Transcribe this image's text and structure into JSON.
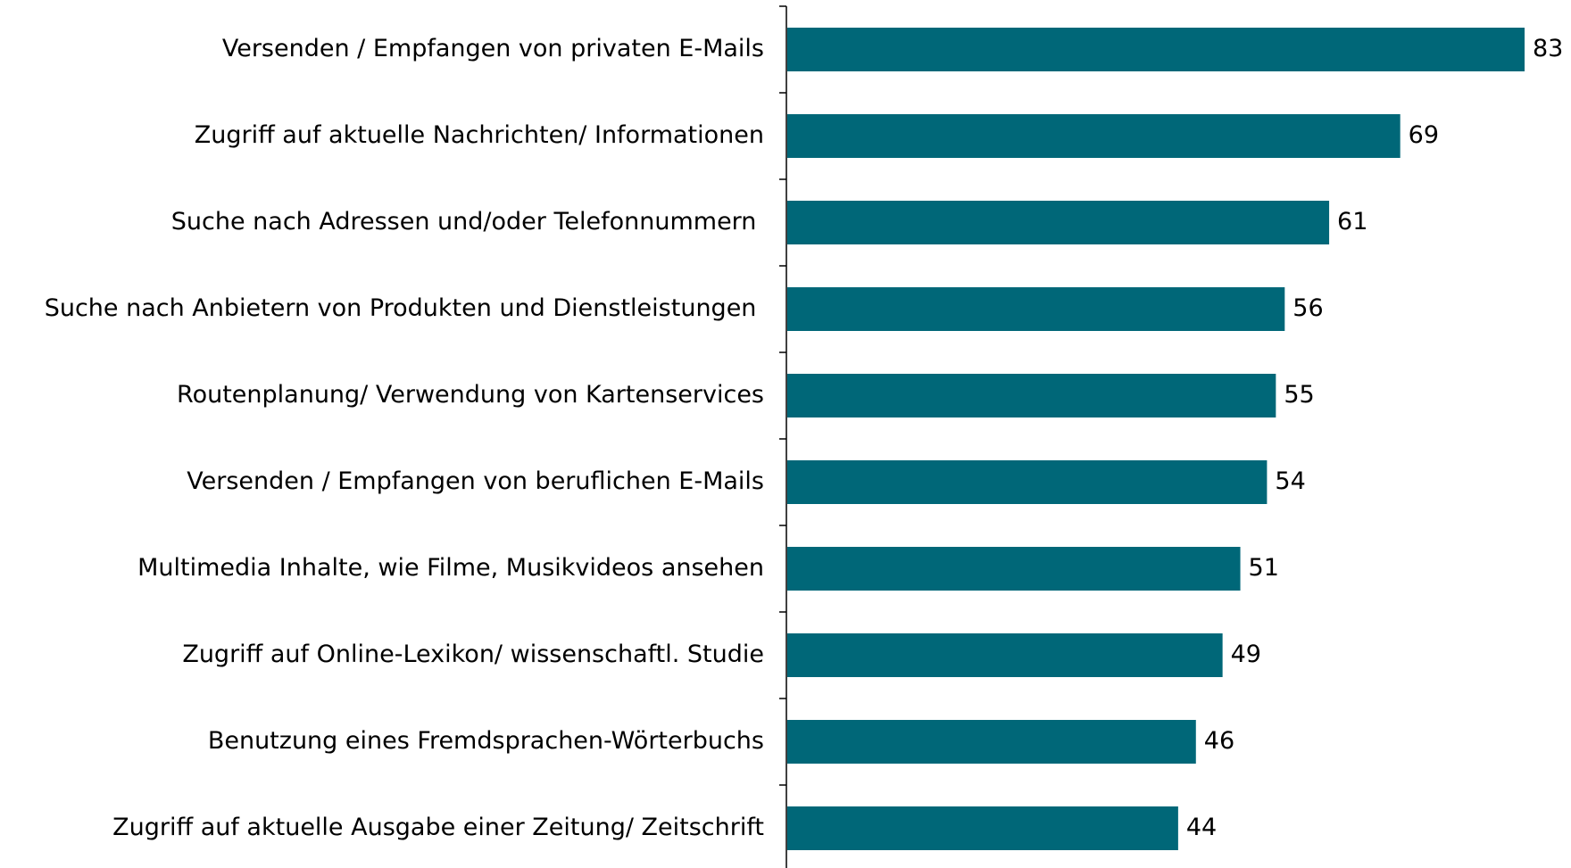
{
  "chart_data": {
    "type": "bar",
    "orientation": "horizontal",
    "categories": [
      "Versenden / Empfangen von privaten E-Mails",
      "Zugriff auf aktuelle Nachrichten/ Informationen",
      "Suche nach Adressen und/oder Telefonnummern ",
      "Suche nach Anbietern von Produkten und Dienstleistungen ",
      "Routenplanung/ Verwendung von Kartenservices",
      "Versenden / Empfangen von beruflichen E-Mails",
      "Multimedia Inhalte, wie Filme, Musikvideos ansehen",
      "Zugriff auf Online-Lexikon/ wissenschaftl. Studie",
      "Benutzung eines Fremdsprachen-Wörterbuchs",
      "Zugriff auf aktuelle Ausgabe einer Zeitung/ Zeitschrift"
    ],
    "values": [
      83,
      69,
      61,
      56,
      55,
      54,
      51,
      49,
      46,
      44
    ],
    "color": "#006778"
  }
}
